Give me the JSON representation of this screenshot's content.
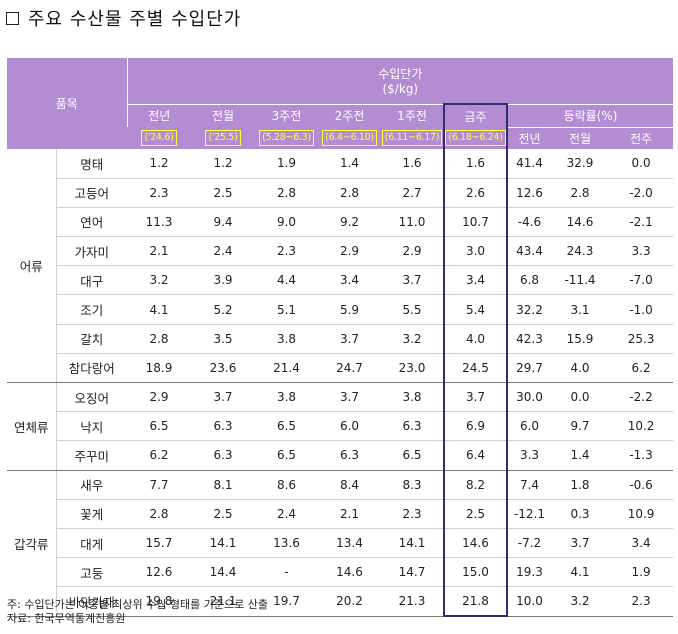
{
  "title": "주요 수산물 주별 수입단가",
  "header": {
    "item_col": "품목",
    "price_group": "수입단가",
    "price_unit": "($/kg)",
    "rate_group": "등락률(%)",
    "periods": [
      {
        "label": "전년",
        "range": "('24.6)"
      },
      {
        "label": "전월",
        "range": "('25.5)"
      },
      {
        "label": "3주전",
        "range": "(5.28~6.3)"
      },
      {
        "label": "2주전",
        "range": "(6.4~6.10)"
      },
      {
        "label": "1주전",
        "range": "(6.11~6.17)"
      },
      {
        "label": "금주",
        "range": "(6.18~6.24)"
      }
    ],
    "rate_cols": [
      "전년",
      "전월",
      "전주"
    ]
  },
  "groups": [
    {
      "name": "어류",
      "rows": [
        {
          "item": "명태",
          "v": [
            "1.2",
            "1.2",
            "1.9",
            "1.4",
            "1.6",
            "1.6",
            "41.4",
            "32.9",
            "0.0"
          ]
        },
        {
          "item": "고등어",
          "v": [
            "2.3",
            "2.5",
            "2.8",
            "2.8",
            "2.7",
            "2.6",
            "12.6",
            "2.8",
            "-2.0"
          ]
        },
        {
          "item": "연어",
          "v": [
            "11.3",
            "9.4",
            "9.0",
            "9.2",
            "11.0",
            "10.7",
            "-4.6",
            "14.6",
            "-2.1"
          ]
        },
        {
          "item": "가자미",
          "v": [
            "2.1",
            "2.4",
            "2.3",
            "2.9",
            "2.9",
            "3.0",
            "43.4",
            "24.3",
            "3.3"
          ]
        },
        {
          "item": "대구",
          "v": [
            "3.2",
            "3.9",
            "4.4",
            "3.4",
            "3.7",
            "3.4",
            "6.8",
            "-11.4",
            "-7.0"
          ]
        },
        {
          "item": "조기",
          "v": [
            "4.1",
            "5.2",
            "5.1",
            "5.9",
            "5.5",
            "5.4",
            "32.2",
            "3.1",
            "-1.0"
          ]
        },
        {
          "item": "갈치",
          "v": [
            "2.8",
            "3.5",
            "3.8",
            "3.7",
            "3.2",
            "4.0",
            "42.3",
            "15.9",
            "25.3"
          ]
        },
        {
          "item": "참다랑어",
          "v": [
            "18.9",
            "23.6",
            "21.4",
            "24.7",
            "23.0",
            "24.5",
            "29.7",
            "4.0",
            "6.2"
          ]
        }
      ]
    },
    {
      "name": "연체류",
      "rows": [
        {
          "item": "오징어",
          "v": [
            "2.9",
            "3.7",
            "3.8",
            "3.7",
            "3.8",
            "3.7",
            "30.0",
            "0.0",
            "-2.2"
          ]
        },
        {
          "item": "낙지",
          "v": [
            "6.5",
            "6.3",
            "6.5",
            "6.0",
            "6.3",
            "6.9",
            "6.0",
            "9.7",
            "10.2"
          ]
        },
        {
          "item": "주꾸미",
          "v": [
            "6.2",
            "6.3",
            "6.5",
            "6.3",
            "6.5",
            "6.4",
            "3.3",
            "1.4",
            "-1.3"
          ]
        }
      ]
    },
    {
      "name": "갑각류",
      "rows": [
        {
          "item": "새우",
          "v": [
            "7.7",
            "8.1",
            "8.6",
            "8.4",
            "8.3",
            "8.2",
            "7.4",
            "1.8",
            "-0.6"
          ]
        },
        {
          "item": "꽃게",
          "v": [
            "2.8",
            "2.5",
            "2.4",
            "2.1",
            "2.3",
            "2.5",
            "-12.1",
            "0.3",
            "10.9"
          ]
        },
        {
          "item": "대게",
          "v": [
            "15.7",
            "14.1",
            "13.6",
            "13.4",
            "14.1",
            "14.6",
            "-7.2",
            "3.7",
            "3.4"
          ]
        },
        {
          "item": "고둥",
          "v": [
            "12.6",
            "14.4",
            "-",
            "14.6",
            "14.7",
            "15.0",
            "19.3",
            "4.1",
            "1.9"
          ]
        },
        {
          "item": "바닷가재",
          "v": [
            "19.8",
            "21.1",
            "19.7",
            "20.2",
            "21.3",
            "21.8",
            "10.0",
            "3.2",
            "2.3"
          ]
        }
      ]
    }
  ],
  "notes": {
    "note": "주: 수입단가는 어종별 최상위 수입 형태를 기준으로 산출",
    "source": "자료: 한국무역통계진흥원"
  }
}
